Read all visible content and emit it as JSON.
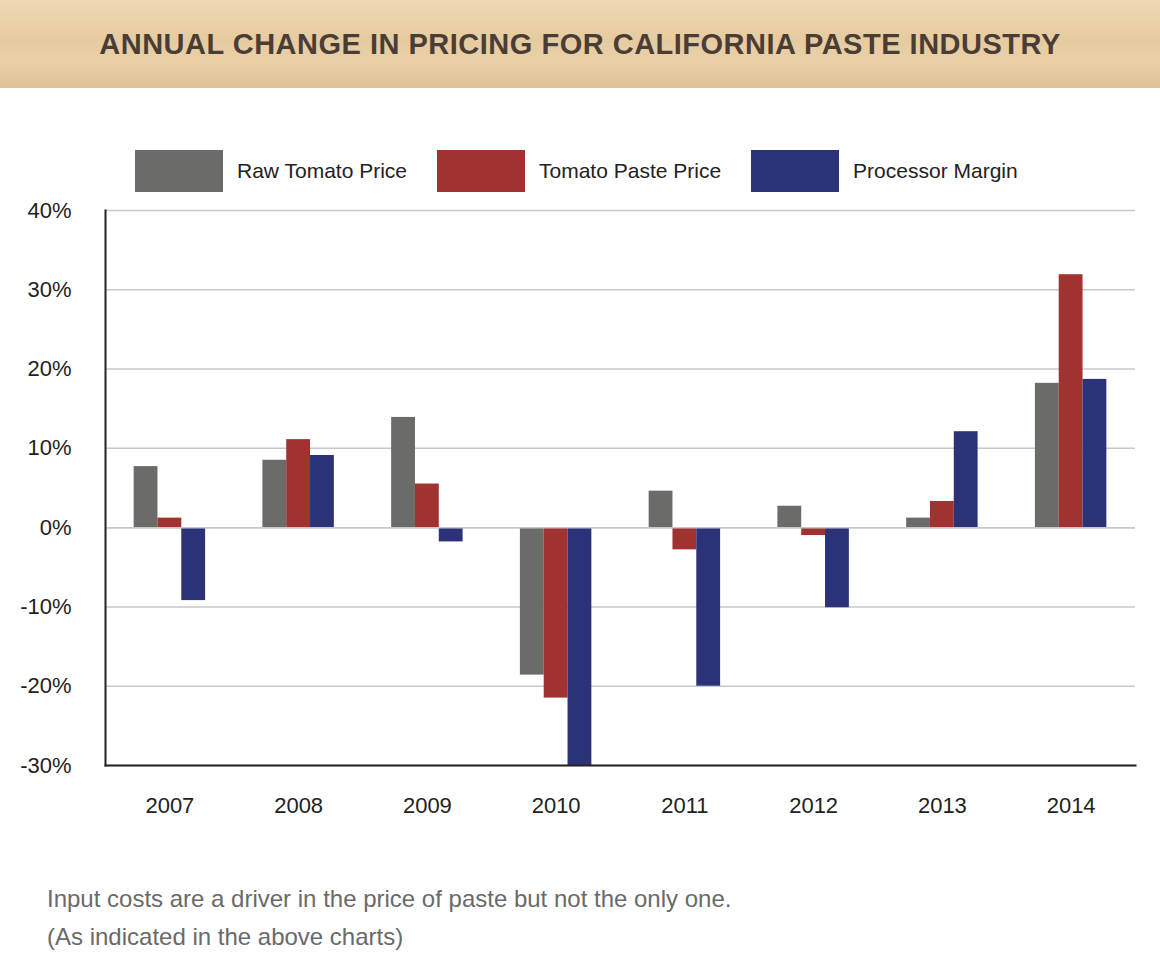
{
  "chart_data": {
    "type": "bar",
    "title": "ANNUAL CHANGE IN PRICING FOR CALIFORNIA PASTE INDUSTRY",
    "caption": [
      "Input costs are a driver in the price of paste but not the only one.",
      "(As indicated in the above charts)"
    ],
    "categories": [
      "2007",
      "2008",
      "2009",
      "2010",
      "2011",
      "2012",
      "2013",
      "2014"
    ],
    "series": [
      {
        "name": "Raw Tomato Price",
        "color": "#6b6b68",
        "values": [
          7.7,
          8.5,
          13.9,
          -18.6,
          4.6,
          2.7,
          1.2,
          18.2
        ]
      },
      {
        "name": "Tomato Paste Price",
        "color": "#a03232",
        "values": [
          1.2,
          11.1,
          5.5,
          -21.5,
          -2.8,
          -1.0,
          3.3,
          31.9
        ]
      },
      {
        "name": "Processor Margin",
        "color": "#2b3278",
        "values": [
          -9.2,
          9.1,
          -1.8,
          -30,
          -20,
          -10.1,
          12.1,
          18.7
        ]
      }
    ],
    "ylim": [
      -30,
      40
    ],
    "yticks": [
      {
        "value": -30,
        "label": "-30%"
      },
      {
        "value": -20,
        "label": "-20%"
      },
      {
        "value": -10,
        "label": "-10%"
      },
      {
        "value": 0,
        "label": "0%"
      },
      {
        "value": 10,
        "label": "10%"
      },
      {
        "value": 20,
        "label": "20%"
      },
      {
        "value": 30,
        "label": "30%"
      },
      {
        "value": 40,
        "label": "40%"
      }
    ],
    "grid": true,
    "legend": "top"
  }
}
